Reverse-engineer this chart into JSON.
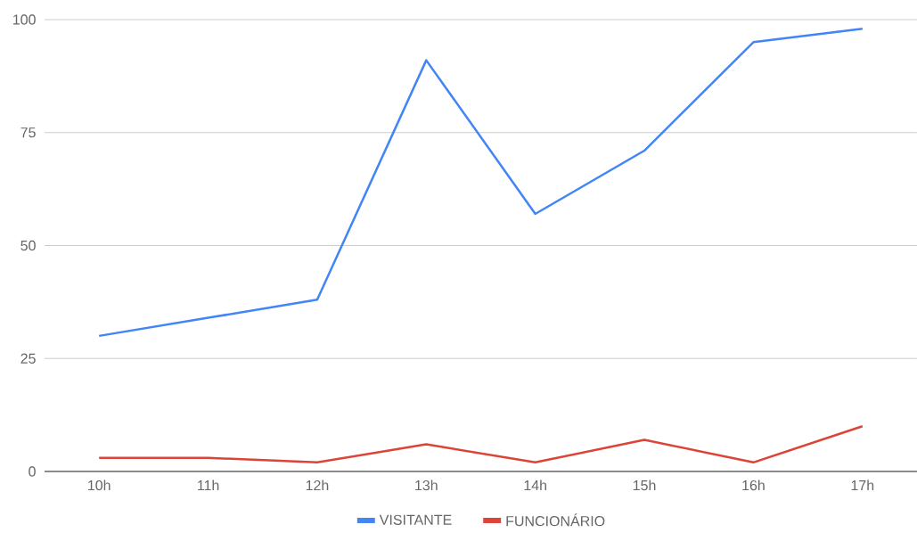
{
  "chart_data": {
    "type": "line",
    "categories": [
      "10h",
      "11h",
      "12h",
      "13h",
      "14h",
      "15h",
      "16h",
      "17h"
    ],
    "series": [
      {
        "name": "VISITANTE",
        "color": "#4285f4",
        "values": [
          30,
          34,
          38,
          91,
          57,
          71,
          95,
          98
        ]
      },
      {
        "name": "FUNCIONÁRIO",
        "color": "#db4437",
        "values": [
          3,
          3,
          2,
          6,
          2,
          7,
          2,
          10
        ]
      }
    ],
    "ylim": [
      0,
      100
    ],
    "yticks": [
      0,
      25,
      50,
      75,
      100
    ],
    "grid": "y",
    "legend": "bottom",
    "marker": "none",
    "line_style": "solid"
  }
}
